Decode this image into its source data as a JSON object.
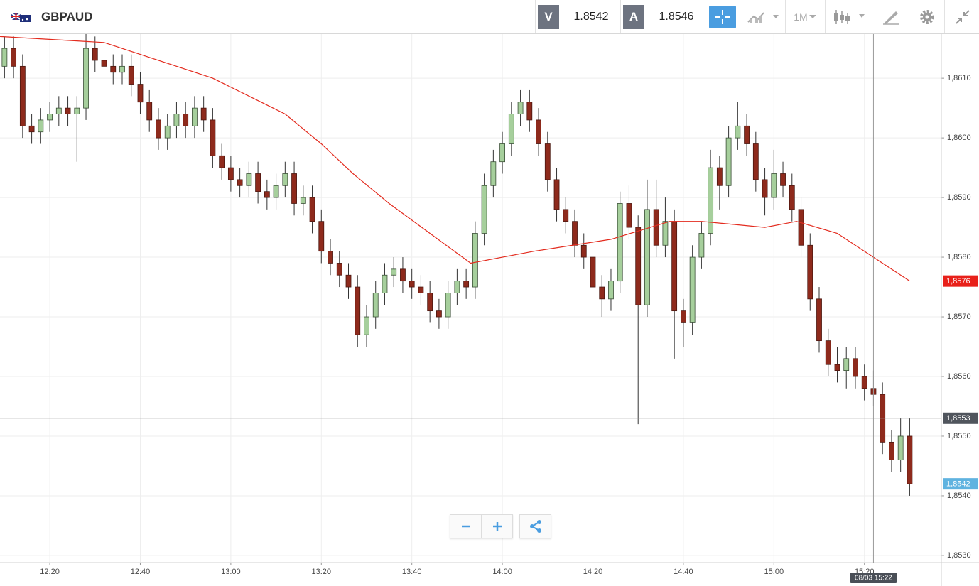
{
  "toolbar": {
    "symbol": "GBPAUD",
    "bid_label": "V",
    "bid": "1.8542",
    "ask_label": "A",
    "ask": "1.8546",
    "timeframe": "1M"
  },
  "chart_data": {
    "type": "candlestick",
    "xlim": [
      "12:09",
      "15:37"
    ],
    "ylim": [
      1.85288,
      1.86174
    ],
    "grid": true,
    "up_color": "#a6cf9c",
    "down_color": "#8e2a1c",
    "xticks": [
      "12:20",
      "12:40",
      "13:00",
      "13:20",
      "13:40",
      "14:00",
      "14:20",
      "14:40",
      "15:00",
      "15:20"
    ],
    "yticks": [
      {
        "value": 1.853,
        "label": "1,8530"
      },
      {
        "value": 1.854,
        "label": "1,8540"
      },
      {
        "value": 1.855,
        "label": "1,8550"
      },
      {
        "value": 1.856,
        "label": "1,8560"
      },
      {
        "value": 1.857,
        "label": "1,8570"
      },
      {
        "value": 1.858,
        "label": "1,8580"
      },
      {
        "value": 1.859,
        "label": "1,8590"
      },
      {
        "value": 1.86,
        "label": "1,8600"
      },
      {
        "value": 1.861,
        "label": "1,8610"
      }
    ],
    "x": [
      "12:10",
      "12:12",
      "12:14",
      "12:16",
      "12:18",
      "12:20",
      "12:22",
      "12:24",
      "12:26",
      "12:28",
      "12:30",
      "12:32",
      "12:34",
      "12:36",
      "12:38",
      "12:40",
      "12:42",
      "12:44",
      "12:46",
      "12:48",
      "12:50",
      "12:52",
      "12:54",
      "12:56",
      "12:58",
      "13:00",
      "13:02",
      "13:04",
      "13:06",
      "13:08",
      "13:10",
      "13:12",
      "13:14",
      "13:16",
      "13:18",
      "13:20",
      "13:22",
      "13:24",
      "13:26",
      "13:28",
      "13:30",
      "13:32",
      "13:34",
      "13:36",
      "13:38",
      "13:40",
      "13:42",
      "13:44",
      "13:46",
      "13:48",
      "13:50",
      "13:52",
      "13:54",
      "13:56",
      "13:58",
      "14:00",
      "14:02",
      "14:04",
      "14:06",
      "14:08",
      "14:10",
      "14:12",
      "14:14",
      "14:16",
      "14:18",
      "14:20",
      "14:22",
      "14:24",
      "14:26",
      "14:28",
      "14:30",
      "14:32",
      "14:34",
      "14:36",
      "14:38",
      "14:40",
      "14:42",
      "14:44",
      "14:46",
      "14:48",
      "14:50",
      "14:52",
      "14:54",
      "14:56",
      "14:58",
      "15:00",
      "15:02",
      "15:04",
      "15:06",
      "15:08",
      "15:10",
      "15:12",
      "15:14",
      "15:16",
      "15:18",
      "15:20",
      "15:22",
      "15:24",
      "15:26",
      "15:28",
      "15:30"
    ],
    "open": [
      1.8612,
      1.8615,
      1.8612,
      1.8602,
      1.8601,
      1.8603,
      1.8604,
      1.8605,
      1.8604,
      1.8605,
      1.8615,
      1.8613,
      1.8612,
      1.8611,
      1.8612,
      1.8609,
      1.8606,
      1.8603,
      1.86,
      1.8602,
      1.8604,
      1.8602,
      1.8605,
      1.8603,
      1.8597,
      1.8595,
      1.8593,
      1.8592,
      1.8594,
      1.8591,
      1.859,
      1.8592,
      1.8594,
      1.8589,
      1.859,
      1.8586,
      1.8581,
      1.8579,
      1.8577,
      1.8575,
      1.8567,
      1.857,
      1.8574,
      1.8577,
      1.8578,
      1.8576,
      1.8575,
      1.8574,
      1.8571,
      1.857,
      1.8574,
      1.8576,
      1.8575,
      1.8584,
      1.8592,
      1.8596,
      1.8599,
      1.8604,
      1.8606,
      1.8603,
      1.8599,
      1.8593,
      1.8588,
      1.8586,
      1.8582,
      1.858,
      1.8575,
      1.8573,
      1.8576,
      1.8589,
      1.8585,
      1.8572,
      1.8588,
      1.8582,
      1.8586,
      1.8571,
      1.8569,
      1.858,
      1.8584,
      1.8595,
      1.8592,
      1.86,
      1.8602,
      1.8599,
      1.8593,
      1.859,
      1.8594,
      1.8592,
      1.8588,
      1.8582,
      1.8573,
      1.8566,
      1.8562,
      1.8561,
      1.8563,
      1.856,
      1.8558,
      1.8557,
      1.8549,
      1.8546,
      1.855
    ],
    "high": [
      1.8617,
      1.8617,
      1.8614,
      1.8604,
      1.8605,
      1.8606,
      1.8607,
      1.8607,
      1.8607,
      1.8618,
      1.8617,
      1.8615,
      1.8614,
      1.8614,
      1.8614,
      1.8611,
      1.8608,
      1.8605,
      1.8604,
      1.8606,
      1.8606,
      1.8607,
      1.8607,
      1.8605,
      1.8599,
      1.8597,
      1.8595,
      1.8596,
      1.8596,
      1.8593,
      1.8594,
      1.8596,
      1.8596,
      1.8592,
      1.8592,
      1.8588,
      1.8583,
      1.8581,
      1.8579,
      1.8577,
      1.8572,
      1.8576,
      1.8579,
      1.858,
      1.858,
      1.8578,
      1.8577,
      1.8576,
      1.8573,
      1.8576,
      1.8578,
      1.8578,
      1.8586,
      1.8594,
      1.8598,
      1.8601,
      1.8606,
      1.8608,
      1.8608,
      1.8605,
      1.8601,
      1.8595,
      1.859,
      1.8588,
      1.8584,
      1.8582,
      1.8577,
      1.8578,
      1.8591,
      1.8592,
      1.8587,
      1.8593,
      1.8593,
      1.859,
      1.8588,
      1.8573,
      1.8582,
      1.8586,
      1.8598,
      1.8597,
      1.8602,
      1.8606,
      1.8604,
      1.8601,
      1.8595,
      1.8598,
      1.8596,
      1.8594,
      1.859,
      1.8584,
      1.8575,
      1.8568,
      1.8565,
      1.8565,
      1.8565,
      1.8562,
      1.8561,
      1.8559,
      1.8551,
      1.8553,
      1.8553
    ],
    "low": [
      1.861,
      1.861,
      1.86,
      1.8599,
      1.8599,
      1.8601,
      1.8602,
      1.8602,
      1.8596,
      1.8603,
      1.8611,
      1.861,
      1.8609,
      1.8609,
      1.8607,
      1.8604,
      1.8601,
      1.8598,
      1.8598,
      1.86,
      1.86,
      1.86,
      1.8601,
      1.8595,
      1.8593,
      1.8591,
      1.859,
      1.859,
      1.8589,
      1.8588,
      1.8588,
      1.859,
      1.8587,
      1.8587,
      1.8584,
      1.8579,
      1.8577,
      1.8575,
      1.8573,
      1.8565,
      1.8565,
      1.8568,
      1.8572,
      1.8575,
      1.8574,
      1.8573,
      1.8572,
      1.8569,
      1.8568,
      1.8568,
      1.8572,
      1.8573,
      1.8573,
      1.8582,
      1.859,
      1.8594,
      1.8597,
      1.8602,
      1.8601,
      1.8597,
      1.8591,
      1.8586,
      1.8584,
      1.858,
      1.8578,
      1.8573,
      1.857,
      1.8571,
      1.8574,
      1.8583,
      1.8552,
      1.857,
      1.858,
      1.858,
      1.8563,
      1.8565,
      1.8567,
      1.8578,
      1.8582,
      1.8588,
      1.859,
      1.8598,
      1.8597,
      1.8591,
      1.8587,
      1.8588,
      1.859,
      1.8586,
      1.858,
      1.8571,
      1.8564,
      1.856,
      1.8559,
      1.8558,
      1.8558,
      1.8556,
      1.8555,
      1.8547,
      1.8544,
      1.8544,
      1.854
    ],
    "close": [
      1.8615,
      1.8612,
      1.8602,
      1.8601,
      1.8603,
      1.8604,
      1.8605,
      1.8604,
      1.8605,
      1.8615,
      1.8613,
      1.8612,
      1.8611,
      1.8612,
      1.8609,
      1.8606,
      1.8603,
      1.86,
      1.8602,
      1.8604,
      1.8602,
      1.8605,
      1.8603,
      1.8597,
      1.8595,
      1.8593,
      1.8592,
      1.8594,
      1.8591,
      1.859,
      1.8592,
      1.8594,
      1.8589,
      1.859,
      1.8586,
      1.8581,
      1.8579,
      1.8577,
      1.8575,
      1.8567,
      1.857,
      1.8574,
      1.8577,
      1.8578,
      1.8576,
      1.8575,
      1.8574,
      1.8571,
      1.857,
      1.8574,
      1.8576,
      1.8575,
      1.8584,
      1.8592,
      1.8596,
      1.8599,
      1.8604,
      1.8606,
      1.8603,
      1.8599,
      1.8593,
      1.8588,
      1.8586,
      1.8582,
      1.858,
      1.8575,
      1.8573,
      1.8576,
      1.8589,
      1.8585,
      1.8572,
      1.8588,
      1.8582,
      1.8586,
      1.8571,
      1.8569,
      1.858,
      1.8584,
      1.8595,
      1.8592,
      1.86,
      1.8602,
      1.8599,
      1.8593,
      1.859,
      1.8594,
      1.8592,
      1.8588,
      1.8582,
      1.8573,
      1.8566,
      1.8562,
      1.8561,
      1.8563,
      1.856,
      1.8558,
      1.8557,
      1.8549,
      1.8546,
      1.855,
      1.8542
    ],
    "overlay": {
      "type": "line",
      "color": "#e32b1e",
      "x": [
        "12:09",
        "12:32",
        "12:48",
        "12:56",
        "13:12",
        "13:20",
        "13:27",
        "13:35",
        "13:53",
        "14:07",
        "14:24",
        "14:37",
        "14:44",
        "14:58",
        "15:05",
        "15:14",
        "15:22",
        "15:30"
      ],
      "values": [
        1.8617,
        1.8616,
        1.8612,
        1.861,
        1.8604,
        1.8599,
        1.8594,
        1.8589,
        1.8579,
        1.8581,
        1.8583,
        1.8586,
        1.8586,
        1.8585,
        1.8586,
        1.8584,
        1.858,
        1.8576
      ]
    },
    "price_tags": [
      {
        "value": 1.8576,
        "label": "1,8576",
        "color": "#e8201a"
      },
      {
        "value": 1.8553,
        "label": "1,8553",
        "color": "#50555d"
      },
      {
        "value": 1.8542,
        "label": "1,8542",
        "color": "#5fb3e0"
      }
    ],
    "crosshair": {
      "x": "15:22",
      "y": 1.8553,
      "time_label": "08/03 15:22",
      "color": "#9a9a9a"
    }
  }
}
